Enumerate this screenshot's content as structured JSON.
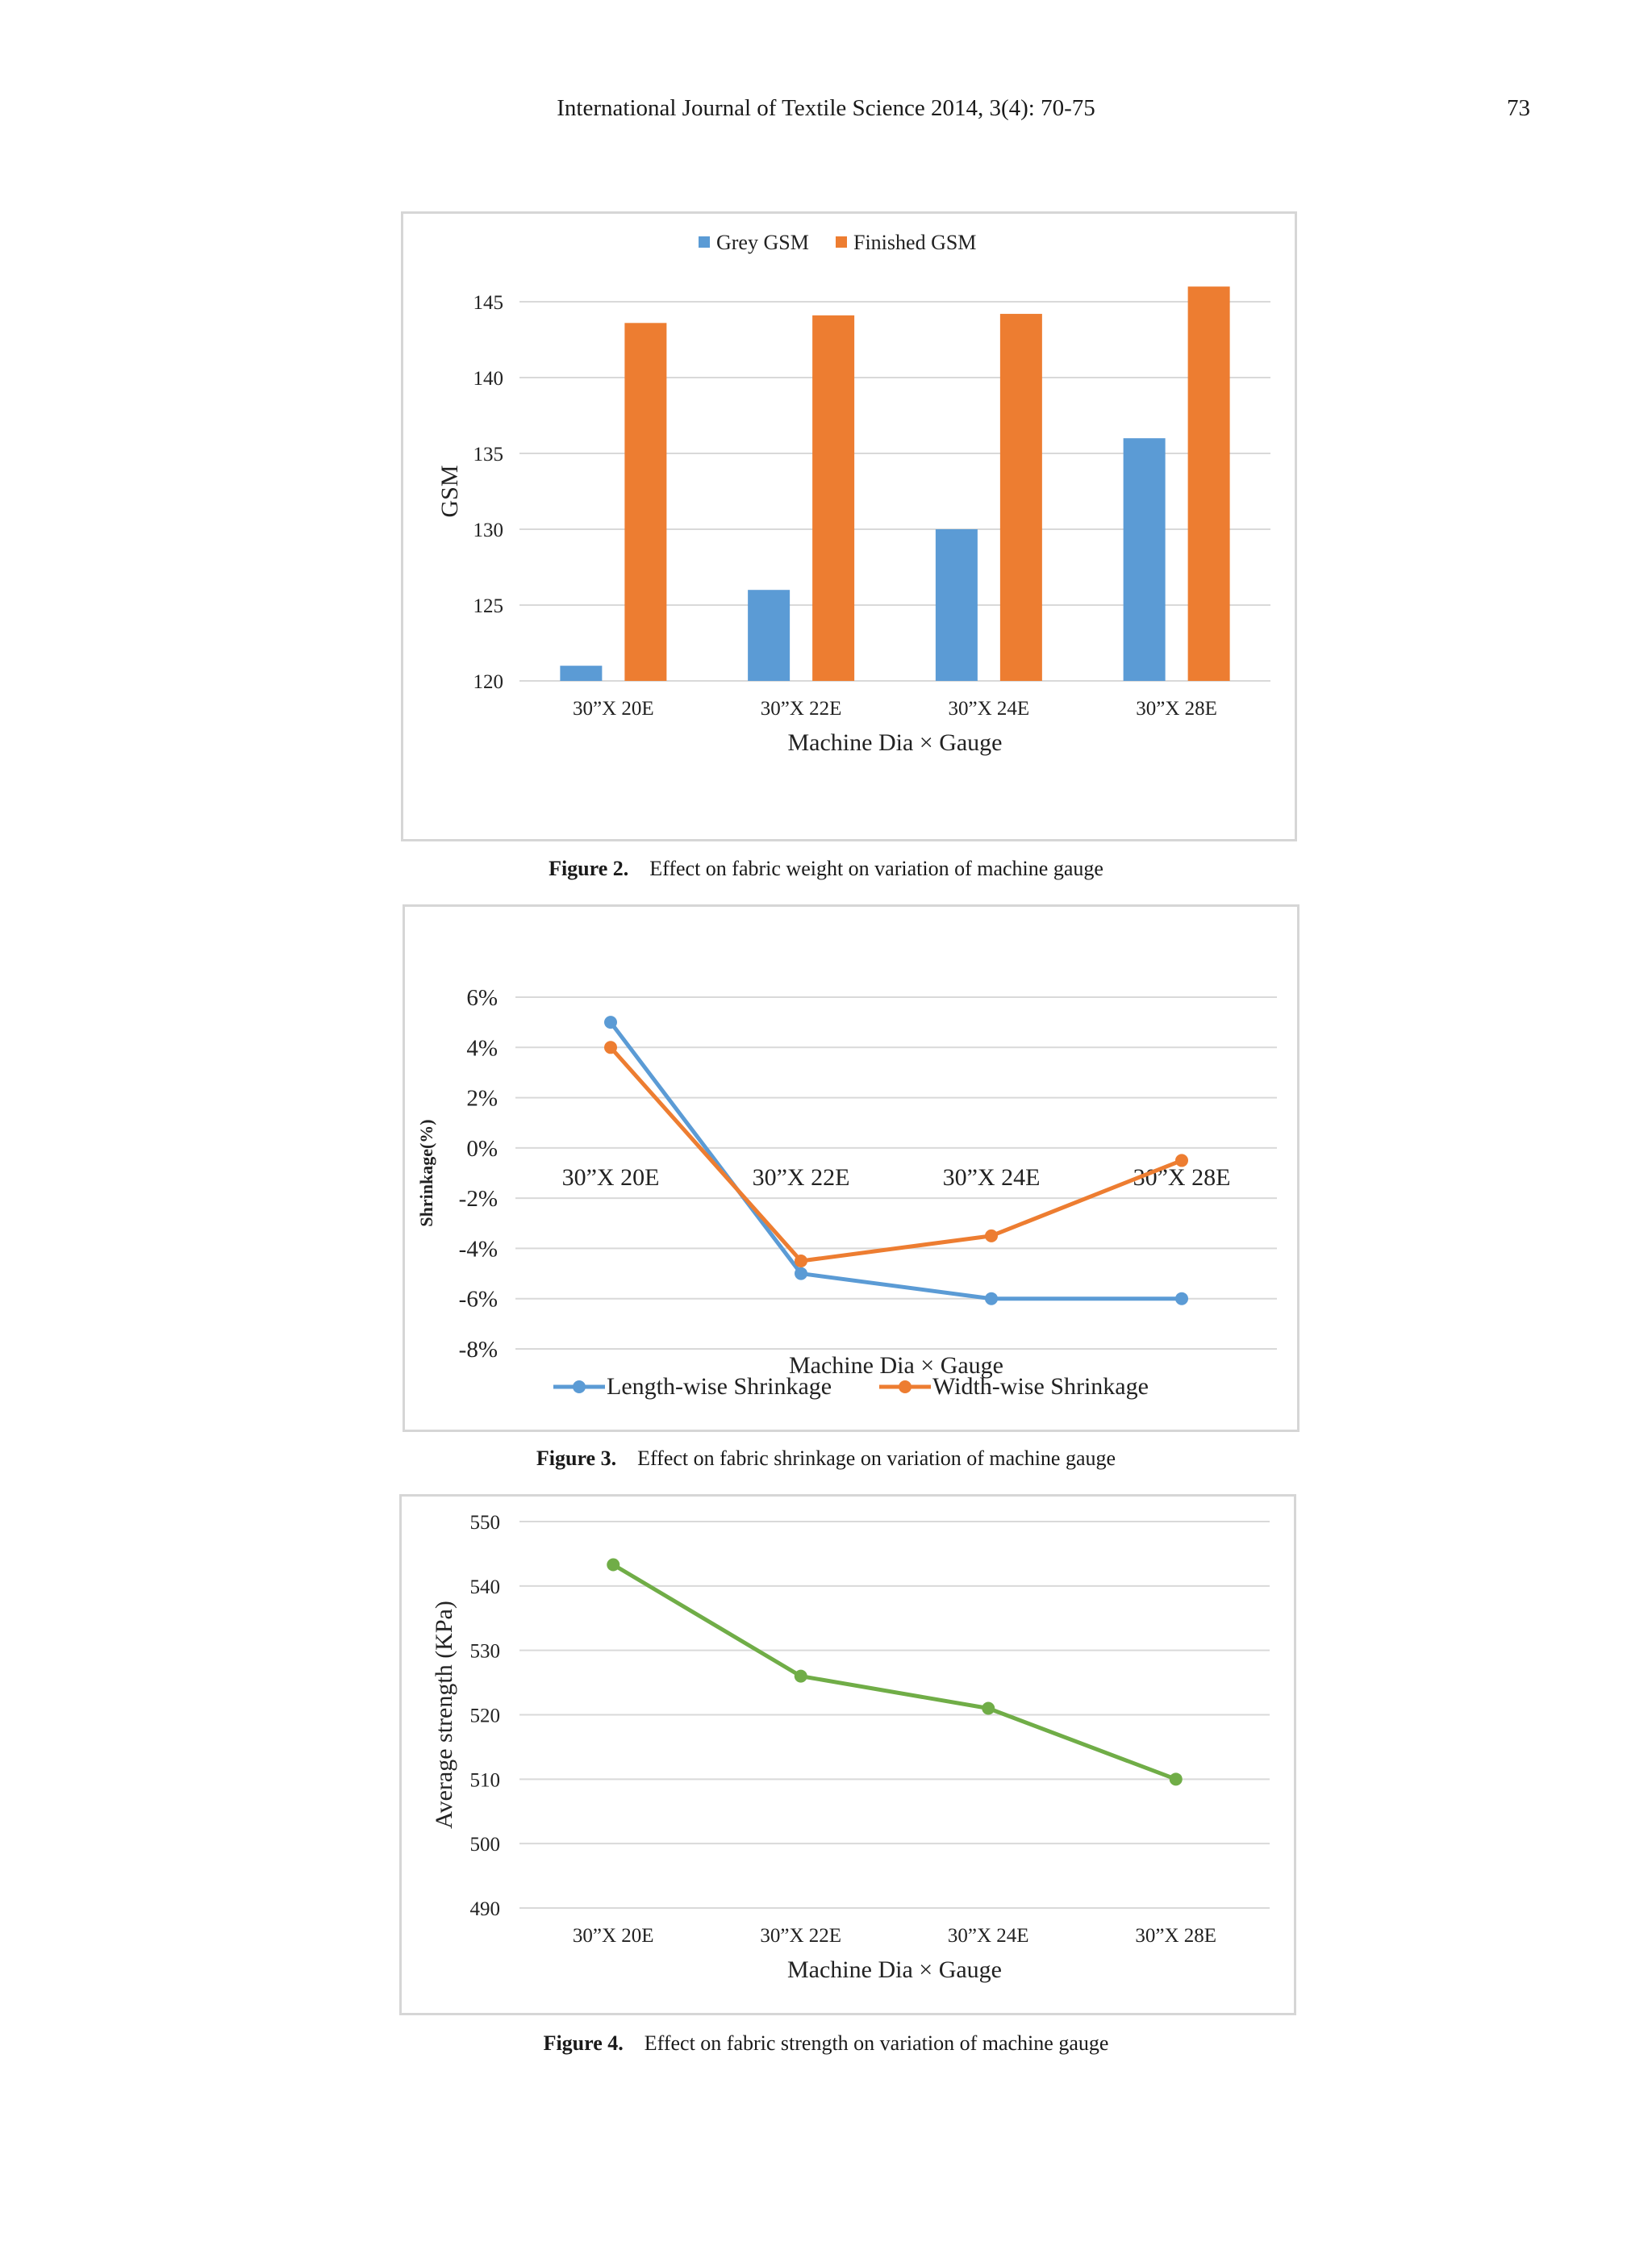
{
  "header": {
    "journal": "International Journal of Textile Science 2014, 3(4): 70-75",
    "page_number": "73"
  },
  "captions": [
    {
      "label": "Figure 2.",
      "text": "Effect on fabric weight on variation of machine gauge"
    },
    {
      "label": "Figure 3.",
      "text": "Effect on fabric shrinkage on variation of machine gauge"
    },
    {
      "label": "Figure 4.",
      "text": "Effect on fabric strength on variation of machine gauge"
    }
  ],
  "chart_data": [
    {
      "type": "bar",
      "categories": [
        "30”X 20E",
        "30”X 22E",
        "30”X 24E",
        "30”X 28E"
      ],
      "series": [
        {
          "name": "Grey GSM",
          "color": "#5B9BD5",
          "values": [
            121,
            126,
            130,
            136
          ]
        },
        {
          "name": "Finished GSM",
          "color": "#ED7D31",
          "values": [
            143.6,
            144.1,
            144.2,
            146
          ]
        }
      ],
      "xlabel": "Machine Dia × Gauge",
      "ylabel": "GSM",
      "ylim": [
        120,
        145
      ],
      "yticks": [
        "120",
        "125",
        "130",
        "135",
        "140",
        "145"
      ],
      "legend": "top",
      "grid": true
    },
    {
      "type": "line",
      "categories": [
        "30”X 20E",
        "30”X 22E",
        "30”X 24E",
        "30”X 28E"
      ],
      "series": [
        {
          "name": "Length-wise Shrinkage",
          "color": "#5B9BD5",
          "values": [
            5,
            -5,
            -6,
            -6
          ]
        },
        {
          "name": "Width-wise Shrinkage",
          "color": "#ED7D31",
          "values": [
            4,
            -4.5,
            -3.5,
            -0.5
          ]
        }
      ],
      "xlabel": "Machine Dia × Gauge",
      "ylabel": "Shrinkage(%)",
      "ylim": [
        -8,
        6
      ],
      "yticks": [
        "-8%",
        "-6%",
        "-4%",
        "-2%",
        "0%",
        "2%",
        "4%",
        "6%"
      ],
      "legend": "bottom",
      "grid": true
    },
    {
      "type": "line",
      "categories": [
        "30”X 20E",
        "30”X 22E",
        "30”X 24E",
        "30”X 28E"
      ],
      "series": [
        {
          "color": "#70AD47",
          "values": [
            543.3,
            526,
            521,
            510
          ]
        }
      ],
      "xlabel": "Machine Dia × Gauge",
      "ylabel": "Average strength (KPa)",
      "ylim": [
        490,
        550
      ],
      "yticks": [
        "490",
        "500",
        "510",
        "520",
        "530",
        "540",
        "550"
      ],
      "grid": true
    }
  ]
}
